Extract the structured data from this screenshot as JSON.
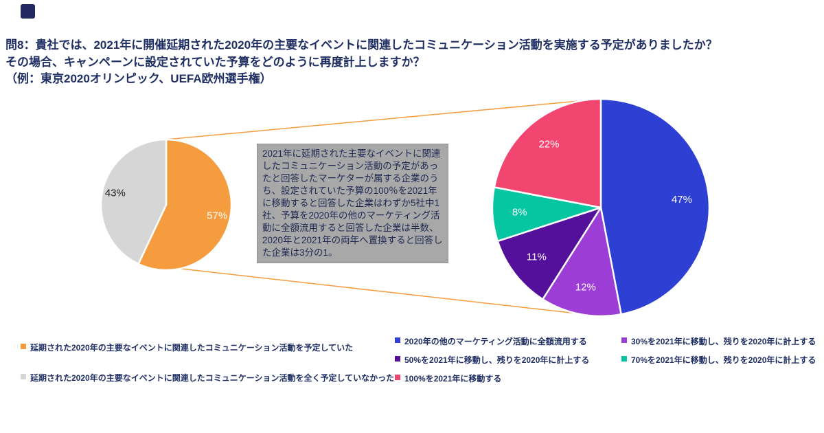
{
  "logo": {
    "color": "#232861"
  },
  "title": {
    "line1": "問8：貴社では、2021年に開催延期された2020年の主要なイベントに関連したコミュニケーション活動を実施する予定がありましたか？",
    "line2": "その場合、キャンペーンに設定されていた予算をどのように再度計上しますか？",
    "line3": "（例：東京2020オリンピック、UEFA欧州選手権）"
  },
  "callout": {
    "text": "2021年に延期された主要なイベントに関連したコミュニケーション活動の予定があったと回答したマーケターが属する企業のうち、設定されていた予算の100％を2021年に移動すると回答した企業はわずか5社中1社、予算を2020年の他のマーケティング活動に全額流用すると回答した企業は半数、2020年と2021年の両年へ置換すると回答した企業は3分の1。",
    "bg": "#A8A8A8",
    "text_color": "#1E2852"
  },
  "connector_color": "#F59C3F",
  "chart_data": [
    {
      "type": "pie",
      "name": "left-pie",
      "slices": [
        {
          "label": "延期された2020年の主要なイベントに関連したコミュニケーション活動を予定していた",
          "value": 57,
          "pct_label": "57%",
          "color": "#F59C3F",
          "label_color": "#FFFFFF"
        },
        {
          "label": "延期された2020年の主要なイベントに関連したコミュニケーション活動を全く予定していなかった",
          "value": 43,
          "pct_label": "43%",
          "color": "#D6D6D6",
          "label_color": "#1A1A1A"
        }
      ]
    },
    {
      "type": "pie",
      "name": "right-pie",
      "slices": [
        {
          "label": "2020年の他のマーケティング活動に全額流用する",
          "value": 47,
          "pct_label": "47%",
          "color": "#2E3FD3",
          "label_color": "#FFFFFF"
        },
        {
          "label": "30%を2021年に移動し、残りを2020年に計上する",
          "value": 12,
          "pct_label": "12%",
          "color": "#9C3ED6",
          "label_color": "#FFFFFF"
        },
        {
          "label": "50%を2021年に移動し、残りを2020年に計上する",
          "value": 11,
          "pct_label": "11%",
          "color": "#54109B",
          "label_color": "#FFFFFF"
        },
        {
          "label": "70%を2021年に移動し、残りを2020年に計上する",
          "value": 8,
          "pct_label": "8%",
          "color": "#06C6A2",
          "label_color": "#FFFFFF"
        },
        {
          "label": "100%を2021年に移動する",
          "value": 22,
          "pct_label": "22%",
          "color": "#F2456F",
          "label_color": "#FFFFFF"
        }
      ]
    }
  ],
  "legends": {
    "left": [
      {
        "color": "#F59C3F",
        "label": "延期された2020年の主要なイベントに関連したコミュニケーション活動を予定していた"
      },
      {
        "color": "#D6D6D6",
        "label": "延期された2020年の主要なイベントに関連したコミュニケーション活動を全く予定していなかった"
      }
    ],
    "middle": [
      {
        "color": "#2E3FD3",
        "label": "2020年の他のマーケティング活動に全額流用する"
      },
      {
        "color": "#54109B",
        "label": "50%を2021年に移動し、残りを2020年に計上する"
      },
      {
        "color": "#F2456F",
        "label": "100%を2021年に移動する"
      }
    ],
    "right": [
      {
        "color": "#9C3ED6",
        "label": "30%を2021年に移動し、残りを2020年に計上する"
      },
      {
        "color": "#06C6A2",
        "label": "70%を2021年に移動し、残りを2020年に計上する"
      }
    ]
  }
}
